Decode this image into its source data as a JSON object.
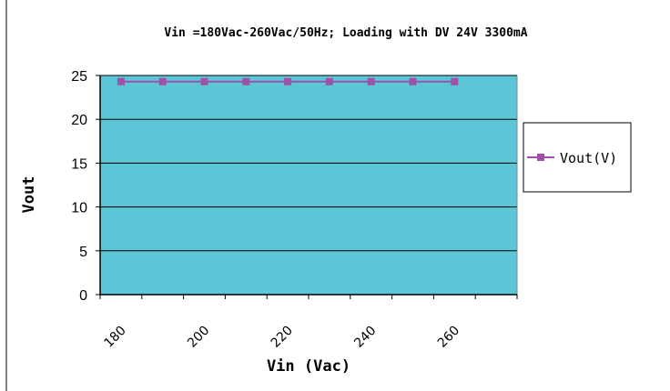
{
  "chart_data": {
    "type": "line",
    "title": "Vin =180Vac-260Vac/50Hz; Loading with DV 24V 3300mA",
    "xlabel": "Vin (Vac)",
    "ylabel": "Vout",
    "x_ticks": [
      "180",
      "200",
      "220",
      "240",
      "260"
    ],
    "y_ticks": [
      "0",
      "5",
      "10",
      "15",
      "20",
      "25"
    ],
    "ylim": [
      0,
      25
    ],
    "xlim": [
      175,
      275
    ],
    "grid": "horizontal",
    "legend_position": "right",
    "series": [
      {
        "name": "Vout(V)",
        "x": [
          180,
          190,
          200,
          210,
          220,
          230,
          240,
          250,
          260
        ],
        "values": [
          24.3,
          24.3,
          24.3,
          24.3,
          24.3,
          24.3,
          24.3,
          24.3,
          24.3
        ]
      }
    ],
    "colors": {
      "plot_bg": "#5bc7d6",
      "series": "#a050a8",
      "grid": "#000000"
    }
  }
}
